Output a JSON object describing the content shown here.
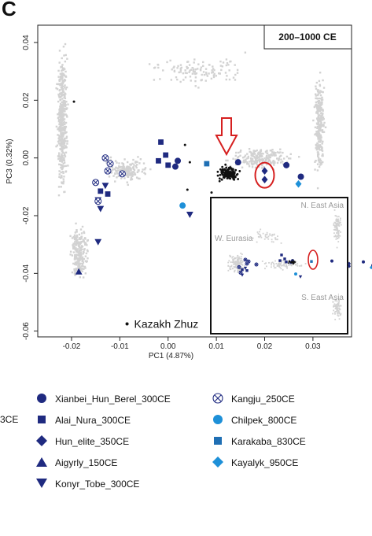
{
  "panel_letter": "C",
  "cut_legend_fragment": "3CE",
  "colors": {
    "dark_navy": "#1f2a80",
    "mid_blue": "#1f6fb4",
    "sky_blue": "#1e90d8",
    "grey_points": "#d2d2d2",
    "black": "#111111",
    "red": "#d62020"
  },
  "chart_data": {
    "type": "scatter",
    "title": "200–1000 CE",
    "xlabel": "PC1 (4.87%)",
    "ylabel": "PC3 (0.32%)",
    "xlim": [
      -0.027,
      0.038
    ],
    "ylim": [
      -0.062,
      0.046
    ],
    "xticks": [
      "-0.02",
      "-0.01",
      "0.00",
      "0.01",
      "0.02",
      "0.03"
    ],
    "xtick_values": [
      -0.02,
      -0.01,
      0.0,
      0.01,
      0.02,
      0.03
    ],
    "yticks": [
      "-0.06",
      "-0.04",
      "-0.02",
      "0.00",
      "0.02",
      "0.04"
    ],
    "ytick_values": [
      -0.06,
      -0.04,
      -0.02,
      0.0,
      0.02,
      0.04
    ],
    "grid": false,
    "reference_label": "Kazakh Zhuz",
    "reference_point": [
      -0.0085,
      -0.0575
    ],
    "series": [
      {
        "name": "Xianbei_Hun_Berel_300CE",
        "marker": "circle",
        "color": "#1f2a80",
        "points": [
          [
            0.002,
            -0.001
          ],
          [
            0.0145,
            -0.0015
          ],
          [
            0.0245,
            -0.0025
          ],
          [
            0.0275,
            -0.0065
          ],
          [
            0.0015,
            -0.003
          ]
        ]
      },
      {
        "name": "Alai_Nura_300CE",
        "marker": "square",
        "color": "#1f2a80",
        "points": [
          [
            -0.0015,
            0.0055
          ],
          [
            -0.0005,
            0.001
          ],
          [
            -0.002,
            -0.001
          ],
          [
            0.0,
            -0.0025
          ],
          [
            -0.014,
            -0.0115
          ],
          [
            -0.0125,
            -0.0125
          ]
        ]
      },
      {
        "name": "Hun_elite_350CE",
        "marker": "diamond",
        "color": "#1f2a80",
        "points": [
          [
            0.02,
            -0.0045
          ],
          [
            0.02,
            -0.0075
          ]
        ]
      },
      {
        "name": "Aigyrly_150CE",
        "marker": "triangle-up",
        "color": "#1f2a80",
        "points": [
          [
            -0.0185,
            -0.0395
          ]
        ]
      },
      {
        "name": "Konyr_Tobe_300CE",
        "marker": "triangle-down",
        "color": "#1f2a80",
        "points": [
          [
            -0.0145,
            -0.0145
          ],
          [
            -0.014,
            -0.0175
          ],
          [
            -0.013,
            -0.0095
          ],
          [
            -0.0145,
            -0.029
          ],
          [
            0.0045,
            -0.0195
          ]
        ]
      },
      {
        "name": "Kangju_250CE",
        "marker": "circle-x",
        "color": "#1f2a80",
        "points": [
          [
            -0.013,
            -0.0
          ],
          [
            -0.012,
            -0.002
          ],
          [
            -0.0125,
            -0.0045
          ],
          [
            -0.0095,
            -0.0055
          ],
          [
            -0.015,
            -0.0085
          ],
          [
            -0.0145,
            -0.015
          ]
        ]
      },
      {
        "name": "Chilpek_800CE",
        "marker": "circle",
        "color": "#1e90d8",
        "points": [
          [
            0.003,
            -0.0165
          ]
        ]
      },
      {
        "name": "Karakaba_830CE",
        "marker": "square",
        "color": "#1f6fb4",
        "points": [
          [
            0.008,
            -0.002
          ]
        ]
      },
      {
        "name": "Kayalyk_950CE",
        "marker": "diamond",
        "color": "#1e90d8",
        "points": [
          [
            0.027,
            -0.009
          ]
        ]
      }
    ],
    "inset": {
      "labels": {
        "n_east_asia": "N. East Asia",
        "w_eurasia": "W. Eurasia",
        "s_east_asia": "S. East Asia"
      },
      "xlim": [
        -0.06,
        0.09
      ],
      "ylim": [
        -0.06,
        0.06
      ]
    }
  },
  "legend": {
    "col1": [
      {
        "label": "Xianbei_Hun_Berel_300CE",
        "marker": "circle",
        "color": "#1f2a80"
      },
      {
        "label": "Alai_Nura_300CE",
        "marker": "square",
        "color": "#1f2a80"
      },
      {
        "label": "Hun_elite_350CE",
        "marker": "diamond",
        "color": "#1f2a80"
      },
      {
        "label": "Aigyrly_150CE",
        "marker": "triangle-up",
        "color": "#1f2a80"
      },
      {
        "label": "Konyr_Tobe_300CE",
        "marker": "triangle-down",
        "color": "#1f2a80"
      }
    ],
    "col2": [
      {
        "label": "Kangju_250CE",
        "marker": "circle-x",
        "color": "#1f2a80"
      },
      {
        "label": "Chilpek_800CE",
        "marker": "circle",
        "color": "#1e90d8"
      },
      {
        "label": "Karakaba_830CE",
        "marker": "square",
        "color": "#1f6fb4"
      },
      {
        "label": "Kayalyk_950CE",
        "marker": "diamond",
        "color": "#1e90d8"
      }
    ]
  }
}
